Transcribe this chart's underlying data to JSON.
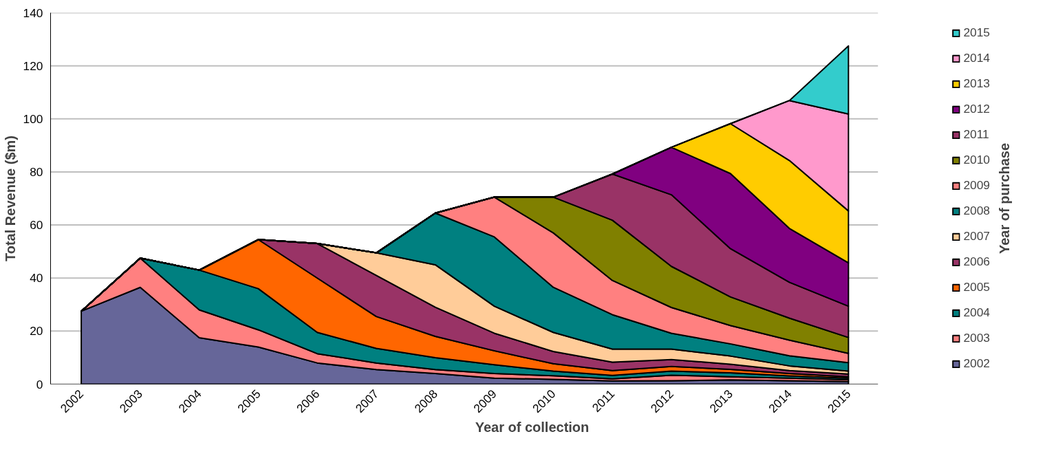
{
  "chart_data": {
    "type": "area",
    "stacked": true,
    "xlabel": "Year of collection",
    "ylabel": "Total Revenue ($m)",
    "legend_title": "Year of purchase",
    "categories": [
      "2002",
      "2003",
      "2004",
      "2005",
      "2006",
      "2007",
      "2008",
      "2009",
      "2010",
      "2011",
      "2012",
      "2013",
      "2014",
      "2015"
    ],
    "ylim": [
      0,
      140
    ],
    "yticks": [
      0,
      20,
      40,
      60,
      80,
      100,
      120,
      140
    ],
    "grid": "y",
    "legend": "right",
    "series": [
      {
        "name": "2002",
        "color": "#666699",
        "values": [
          27.5,
          36.5,
          17.5,
          14,
          8,
          5.5,
          4,
          2.3,
          1.8,
          1.2,
          1.3,
          1.6,
          1.3,
          1.0
        ]
      },
      {
        "name": "2003",
        "color": "#ff8080",
        "values": [
          0,
          11,
          10.5,
          6.5,
          3.5,
          2.5,
          1.5,
          1.7,
          1.4,
          0.8,
          2.1,
          1.2,
          1.0,
          0.7
        ]
      },
      {
        "name": "2004",
        "color": "#008080",
        "values": [
          0,
          0,
          15,
          15.5,
          8,
          5.5,
          4.5,
          3.3,
          1.7,
          1.3,
          1.5,
          1.5,
          0.8,
          0.6
        ]
      },
      {
        "name": "2005",
        "color": "#ff6600",
        "values": [
          0,
          0,
          0,
          18.5,
          20.5,
          12,
          8,
          5.3,
          2.8,
          1.8,
          1.8,
          1.3,
          0.9,
          0.5
        ]
      },
      {
        "name": "2006",
        "color": "#993366",
        "values": [
          0,
          0,
          0,
          0,
          13,
          15.5,
          11,
          6.6,
          4.6,
          3.2,
          2.6,
          1.9,
          1.1,
          1.0
        ]
      },
      {
        "name": "2007",
        "color": "#ffcc99",
        "values": [
          0,
          0,
          0,
          0,
          0,
          8.5,
          16,
          10.2,
          7.2,
          4.9,
          3.9,
          3.1,
          1.8,
          1.1
        ]
      },
      {
        "name": "2008",
        "color": "#008080",
        "values": [
          0,
          0,
          0,
          0,
          0,
          0,
          19.5,
          26.1,
          17,
          13,
          6.0,
          4.6,
          3.8,
          3.2
        ]
      },
      {
        "name": "2009",
        "color": "#ff8080",
        "values": [
          0,
          0,
          0,
          0,
          0,
          0,
          0,
          15,
          20.5,
          12.9,
          9.7,
          6.9,
          5.9,
          3.5
        ]
      },
      {
        "name": "2010",
        "color": "#808000",
        "values": [
          0,
          0,
          0,
          0,
          0,
          0,
          0,
          0,
          13.5,
          22.7,
          15.5,
          10.8,
          8.3,
          6.0
        ]
      },
      {
        "name": "2011",
        "color": "#993366",
        "values": [
          0,
          0,
          0,
          0,
          0,
          0,
          0,
          0,
          0,
          17.4,
          27.0,
          18.2,
          13.5,
          11.8
        ]
      },
      {
        "name": "2012",
        "color": "#800080",
        "values": [
          0,
          0,
          0,
          0,
          0,
          0,
          0,
          0,
          0,
          0,
          17.9,
          28.3,
          20.3,
          16.3
        ]
      },
      {
        "name": "2013",
        "color": "#ffcc00",
        "values": [
          0,
          0,
          0,
          0,
          0,
          0,
          0,
          0,
          0,
          0,
          0,
          18.8,
          25.6,
          19.6
        ]
      },
      {
        "name": "2014",
        "color": "#ff99cc",
        "values": [
          0,
          0,
          0,
          0,
          0,
          0,
          0,
          0,
          0,
          0,
          0,
          0,
          22.6,
          36.5
        ]
      },
      {
        "name": "2015",
        "color": "#33cccc",
        "values": [
          0,
          0,
          0,
          0,
          0,
          0,
          0,
          0,
          0,
          0,
          0,
          0,
          0,
          25.7
        ]
      }
    ]
  }
}
